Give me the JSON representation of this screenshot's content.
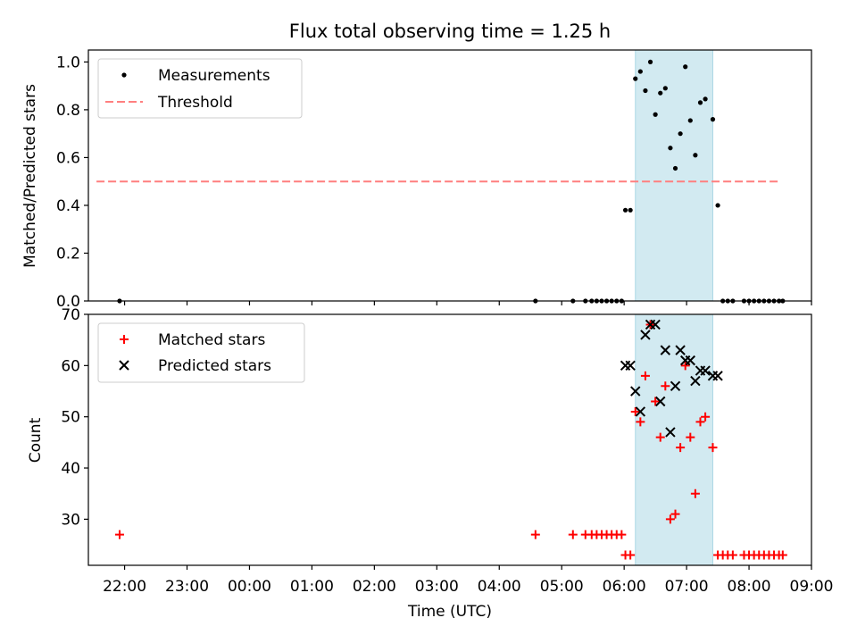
{
  "chart_data": {
    "title": "Flux total observing time = 1.25 h",
    "xlabel": "Time (UTC)",
    "x_unit": "hours since 21:00 UTC",
    "xlim": [
      0.42,
      12.0
    ],
    "x_ticks": [
      {
        "value": 1,
        "label": "22:00"
      },
      {
        "value": 2,
        "label": "23:00"
      },
      {
        "value": 3,
        "label": "00:00"
      },
      {
        "value": 4,
        "label": "01:00"
      },
      {
        "value": 5,
        "label": "02:00"
      },
      {
        "value": 6,
        "label": "03:00"
      },
      {
        "value": 7,
        "label": "04:00"
      },
      {
        "value": 8,
        "label": "05:00"
      },
      {
        "value": 9,
        "label": "06:00"
      },
      {
        "value": 10,
        "label": "07:00"
      },
      {
        "value": 11,
        "label": "08:00"
      },
      {
        "value": 12,
        "label": "09:00"
      }
    ],
    "shaded_interval": {
      "x": [
        9.18,
        10.42
      ],
      "color": "#add8e6"
    },
    "top": {
      "type": "scatter",
      "ylabel": "Matched/Predicted stars",
      "ylim": [
        0,
        1.05
      ],
      "y_ticks": [
        0.0,
        0.2,
        0.4,
        0.6,
        0.8,
        1.0
      ],
      "y_tick_labels": [
        "0.0",
        "0.2",
        "0.4",
        "0.6",
        "0.8",
        "1.0"
      ],
      "legend": [
        "Measurements",
        "Threshold"
      ],
      "threshold": {
        "value": 0.5,
        "x": [
          0.55,
          11.5
        ],
        "color": "#ff7f7f"
      },
      "measurements": {
        "x": [
          0.92,
          7.58,
          8.18,
          8.38,
          8.48,
          8.56,
          8.64,
          8.72,
          8.8,
          8.88,
          8.96,
          9.02,
          9.1,
          9.18,
          9.26,
          9.34,
          9.42,
          9.5,
          9.58,
          9.66,
          9.74,
          9.82,
          9.9,
          9.98,
          10.06,
          10.14,
          10.22,
          10.3,
          10.42,
          10.5,
          10.58,
          10.66,
          10.74,
          10.92,
          11.0,
          11.08,
          11.16,
          11.24,
          11.32,
          11.4,
          11.48,
          11.54
        ],
        "y": [
          0.0,
          0.0,
          0.0,
          0.0,
          0.0,
          0.0,
          0.0,
          0.0,
          0.0,
          0.0,
          0.0,
          0.38,
          0.38,
          0.93,
          0.96,
          0.88,
          1.0,
          0.78,
          0.87,
          0.89,
          0.64,
          0.555,
          0.7,
          0.98,
          0.755,
          0.61,
          0.83,
          0.845,
          0.76,
          0.4,
          0.0,
          0.0,
          0.0,
          0.0,
          0.0,
          0.0,
          0.0,
          0.0,
          0.0,
          0.0,
          0.0,
          0.0
        ],
        "color": "#000000"
      }
    },
    "bottom": {
      "type": "scatter",
      "ylabel": "Count",
      "ylim": [
        21,
        70
      ],
      "y_ticks": [
        30,
        40,
        50,
        60,
        70
      ],
      "y_tick_labels": [
        "30",
        "40",
        "50",
        "60",
        "70"
      ],
      "legend": [
        "Matched stars",
        "Predicted stars"
      ],
      "matched": {
        "x": [
          0.92,
          7.58,
          8.18,
          8.38,
          8.48,
          8.56,
          8.64,
          8.72,
          8.8,
          8.88,
          8.96,
          9.02,
          9.1,
          9.18,
          9.26,
          9.34,
          9.42,
          9.5,
          9.58,
          9.66,
          9.74,
          9.82,
          9.9,
          9.98,
          10.06,
          10.14,
          10.22,
          10.3,
          10.42,
          10.5,
          10.58,
          10.66,
          10.74,
          10.92,
          11.0,
          11.08,
          11.16,
          11.24,
          11.32,
          11.4,
          11.48,
          11.54
        ],
        "y": [
          27,
          27,
          27,
          27,
          27,
          27,
          27,
          27,
          27,
          27,
          27,
          23,
          23,
          51,
          49,
          58,
          68,
          53,
          46,
          56,
          30,
          31,
          44,
          60,
          46,
          35,
          49,
          50,
          44,
          23,
          23,
          23,
          23,
          23,
          23,
          23,
          23,
          23,
          23,
          23,
          23,
          23
        ],
        "color": "#ff0000"
      },
      "predicted": {
        "x": [
          9.02,
          9.1,
          9.18,
          9.26,
          9.34,
          9.42,
          9.5,
          9.58,
          9.66,
          9.74,
          9.82,
          9.9,
          9.98,
          10.06,
          10.14,
          10.22,
          10.3,
          10.42,
          10.5
        ],
        "y": [
          60,
          60,
          55,
          51,
          66,
          68,
          68,
          53,
          63,
          47,
          56,
          63,
          61,
          61,
          57,
          59,
          59,
          58,
          58
        ],
        "color": "#000000"
      }
    }
  }
}
